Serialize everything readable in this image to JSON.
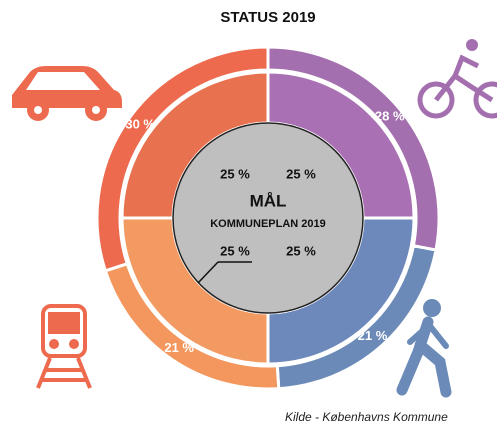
{
  "chart_data": {
    "type": "donut",
    "title": "STATUS 2019",
    "outer": {
      "values": [
        28,
        21,
        21,
        30
      ],
      "value_labels": [
        "28 %",
        "21 %",
        "21 %",
        "30 %"
      ],
      "colors": [
        "#a46fae",
        "#6c8ab8",
        "#f4975e",
        "#ed6a4e"
      ]
    },
    "inner": {
      "values": [
        25,
        25,
        25,
        25
      ],
      "value_labels": [
        "25 %",
        "25 %",
        "25 %",
        "25 %"
      ],
      "colors": [
        "#a970b3",
        "#6d89bb",
        "#f29a61",
        "#e8714f"
      ]
    },
    "center_title": "MÅL",
    "center_subtitle": "KOMMUNEPLAN 2019",
    "source": "Kilde - Københavns Kommune"
  }
}
